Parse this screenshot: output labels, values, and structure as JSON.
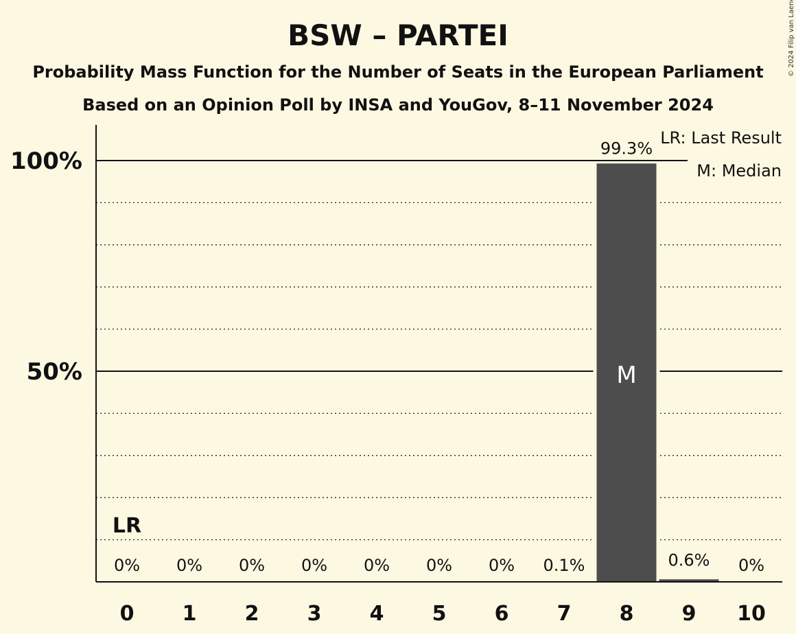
{
  "chart_data": {
    "type": "bar",
    "title": "BSW – PARTEI",
    "subtitle_1": "Probability Mass Function for the Number of Seats in the European Parliament",
    "subtitle_2": "Based on an Opinion Poll by INSA and YouGov, 8–11 November 2024",
    "copyright": "© 2024 Filip van Laenen",
    "categories": [
      "0",
      "1",
      "2",
      "3",
      "4",
      "5",
      "6",
      "7",
      "8",
      "9",
      "10"
    ],
    "values": [
      0,
      0,
      0,
      0,
      0,
      0,
      0,
      0.1,
      99.3,
      0.6,
      0
    ],
    "data_labels": [
      "0%",
      "0%",
      "0%",
      "0%",
      "0%",
      "0%",
      "0%",
      "0.1%",
      "99.3%",
      "0.6%",
      "0%"
    ],
    "y_ticks": [
      {
        "value": 50,
        "label": "50%"
      },
      {
        "value": 100,
        "label": "100%"
      }
    ],
    "ylim": [
      0,
      108
    ],
    "grid": true,
    "minor_grid_step": 10,
    "median_seat": "8",
    "median_marker": "M",
    "last_result_seat": "0",
    "last_result_marker": "LR",
    "legend": [
      "LR: Last Result",
      "M: Median"
    ],
    "legend_position": "top-right",
    "bar_color": "#4d4d4d",
    "background_color": "#fdf8e2"
  }
}
